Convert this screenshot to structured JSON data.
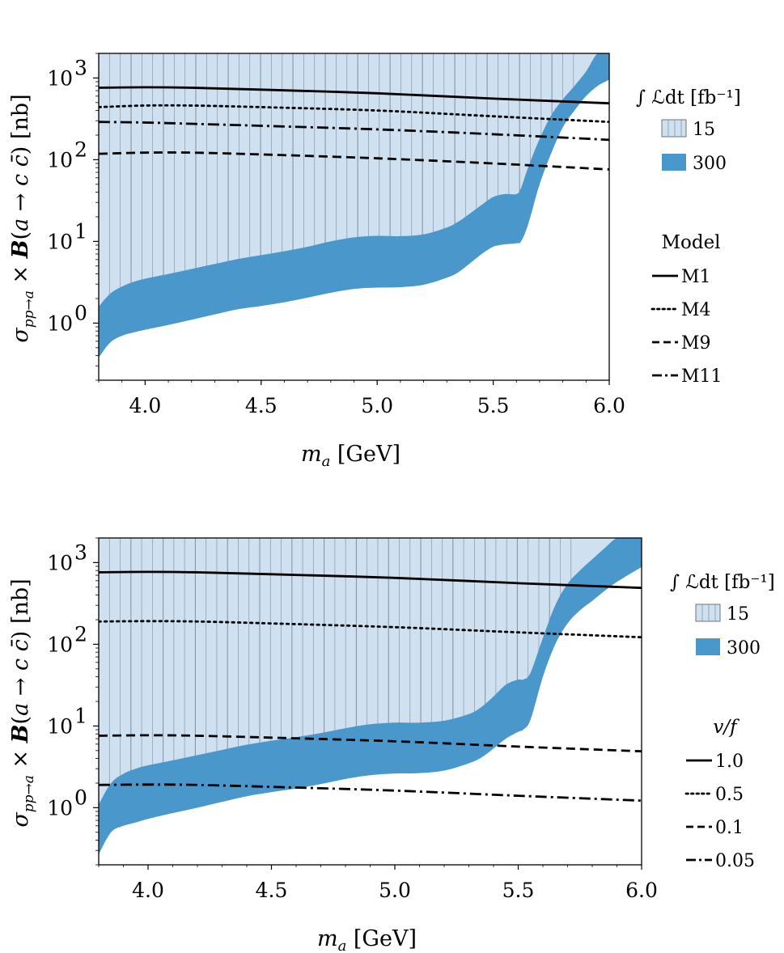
{
  "colors": {
    "fill15": "#cfe0f1",
    "fill300": "#4a98cb",
    "hatch": "#7f8a95",
    "line": "#000000"
  },
  "chart_data": [
    {
      "type": "area",
      "xlabel": "m_a [GeV]",
      "ylabel": "σ_{pp→a} × B(a → c c̄) [nb]",
      "xlim": [
        3.8,
        6.0
      ],
      "ylim": [
        0.2,
        2000
      ],
      "yscale": "log",
      "xticks": [
        "4.0",
        "4.5",
        "5.0",
        "5.5",
        "6.0"
      ],
      "yticks": [
        {
          "value": 1,
          "label": "10^0"
        },
        {
          "value": 10,
          "label": "10^1"
        },
        {
          "value": 100,
          "label": "10^2"
        },
        {
          "value": 1000,
          "label": "10^3"
        }
      ],
      "bands": {
        "x": [
          3.8,
          3.85,
          3.9,
          3.95,
          4.0,
          4.1,
          4.2,
          4.3,
          4.4,
          4.5,
          4.6,
          4.7,
          4.8,
          4.9,
          5.0,
          5.1,
          5.2,
          5.3,
          5.35,
          5.4,
          5.45,
          5.5,
          5.55,
          5.6,
          5.62,
          5.65,
          5.7,
          5.75,
          5.8,
          5.85,
          5.9,
          5.95,
          6.0
        ],
        "band300_upper": [
          1.6,
          2.3,
          2.8,
          3.2,
          3.5,
          4.0,
          4.6,
          5.3,
          6.1,
          6.8,
          7.6,
          8.6,
          10.0,
          11.2,
          11.7,
          11.6,
          12.2,
          14.8,
          17.5,
          22.0,
          28.0,
          35.0,
          38.0,
          38.0,
          45.0,
          80.0,
          180.0,
          350.0,
          550.0,
          800.0,
          1200.0,
          2000.0,
          2000.0
        ],
        "band300_lower": [
          0.38,
          0.58,
          0.7,
          0.77,
          0.83,
          0.95,
          1.1,
          1.28,
          1.48,
          1.62,
          1.8,
          2.05,
          2.35,
          2.62,
          2.72,
          2.75,
          2.95,
          3.6,
          4.2,
          5.4,
          7.0,
          8.6,
          9.2,
          9.5,
          10.0,
          16.0,
          50.0,
          120.0,
          250.0,
          400.0,
          600.0,
          800.0,
          950.0
        ],
        "band15_upper": 2000
      },
      "legend": {
        "lumi_title": "∫ ℒdt [fb⁻¹]",
        "lumi_entries": [
          "15",
          "300"
        ],
        "model_title": "Model",
        "model_entries": [
          "M1",
          "M4",
          "M9",
          "M11"
        ]
      },
      "series": [
        {
          "name": "M1",
          "style": "solid",
          "x": [
            3.8,
            4.0,
            4.2,
            4.5,
            5.0,
            5.5,
            6.0
          ],
          "values": [
            760,
            770,
            760,
            720,
            650,
            560,
            490
          ]
        },
        {
          "name": "M4",
          "style": "dotted",
          "x": [
            3.8,
            4.0,
            4.2,
            4.5,
            5.0,
            5.5,
            6.0
          ],
          "values": [
            440,
            460,
            460,
            440,
            400,
            340,
            290
          ]
        },
        {
          "name": "M11",
          "style": "dashdot",
          "x": [
            3.8,
            4.0,
            4.2,
            4.5,
            5.0,
            5.5,
            6.0
          ],
          "values": [
            290,
            285,
            275,
            260,
            235,
            205,
            175
          ]
        },
        {
          "name": "M9",
          "style": "dashed",
          "x": [
            3.8,
            4.0,
            4.2,
            4.5,
            5.0,
            5.5,
            6.0
          ],
          "values": [
            118,
            122,
            122,
            116,
            104,
            90,
            76
          ]
        }
      ]
    },
    {
      "type": "area",
      "xlabel": "m_a [GeV]",
      "ylabel": "σ_{pp→a} × B(a → c c̄) [nb]",
      "xlim": [
        3.8,
        6.0
      ],
      "ylim": [
        0.2,
        2000
      ],
      "yscale": "log",
      "xticks": [
        "4.0",
        "4.5",
        "5.0",
        "5.5",
        "6.0"
      ],
      "yticks": [
        {
          "value": 1,
          "label": "10^0"
        },
        {
          "value": 10,
          "label": "10^1"
        },
        {
          "value": 100,
          "label": "10^2"
        },
        {
          "value": 1000,
          "label": "10^3"
        }
      ],
      "bands": {
        "x": [
          3.8,
          3.85,
          3.9,
          3.95,
          4.0,
          4.1,
          4.2,
          4.3,
          4.4,
          4.5,
          4.6,
          4.7,
          4.8,
          4.9,
          5.0,
          5.1,
          5.2,
          5.3,
          5.35,
          5.4,
          5.45,
          5.5,
          5.52,
          5.55,
          5.6,
          5.65,
          5.7,
          5.75,
          5.8,
          5.85,
          5.9,
          5.95,
          6.0
        ],
        "band300_upper": [
          1.1,
          2.0,
          2.6,
          3.0,
          3.3,
          3.8,
          4.4,
          5.1,
          5.9,
          6.6,
          7.3,
          8.2,
          9.4,
          10.5,
          11.0,
          11.0,
          11.6,
          14.0,
          17.0,
          23.0,
          32.0,
          37.0,
          37.0,
          45.0,
          120.0,
          300.0,
          550.0,
          800.0,
          1100.0,
          1500.0,
          2000.0,
          2000.0,
          2000.0
        ],
        "band300_lower": [
          0.27,
          0.5,
          0.6,
          0.66,
          0.73,
          0.86,
          1.0,
          1.18,
          1.38,
          1.55,
          1.72,
          1.95,
          2.25,
          2.5,
          2.62,
          2.65,
          2.85,
          3.5,
          4.1,
          5.3,
          7.0,
          8.5,
          9.0,
          12.0,
          40.0,
          100.0,
          180.0,
          260.0,
          340.0,
          450.0,
          580.0,
          720.0,
          880.0
        ],
        "band15_upper": 2000
      },
      "legend": {
        "lumi_title": "∫ ℒdt [fb⁻¹]",
        "lumi_entries": [
          "15",
          "300"
        ],
        "model_title": "v/f",
        "model_entries": [
          "1.0",
          "0.5",
          "0.1",
          "0.05"
        ]
      },
      "series": [
        {
          "name": "1.0",
          "style": "solid",
          "x": [
            3.8,
            4.0,
            4.2,
            4.5,
            5.0,
            5.5,
            6.0
          ],
          "values": [
            760,
            770,
            760,
            720,
            650,
            560,
            490
          ]
        },
        {
          "name": "0.5",
          "style": "dotted",
          "x": [
            3.8,
            4.0,
            4.2,
            4.5,
            5.0,
            5.5,
            6.0
          ],
          "values": [
            190,
            192,
            190,
            180,
            162,
            140,
            122
          ]
        },
        {
          "name": "0.1",
          "style": "dashed",
          "x": [
            3.8,
            4.0,
            4.2,
            4.5,
            5.0,
            5.5,
            6.0
          ],
          "values": [
            7.6,
            7.7,
            7.6,
            7.2,
            6.5,
            5.6,
            4.9
          ]
        },
        {
          "name": "0.05",
          "style": "dashdot",
          "x": [
            3.8,
            4.0,
            4.2,
            4.5,
            5.0,
            5.5,
            6.0
          ],
          "values": [
            1.9,
            1.92,
            1.9,
            1.8,
            1.62,
            1.4,
            1.22
          ]
        }
      ]
    }
  ]
}
